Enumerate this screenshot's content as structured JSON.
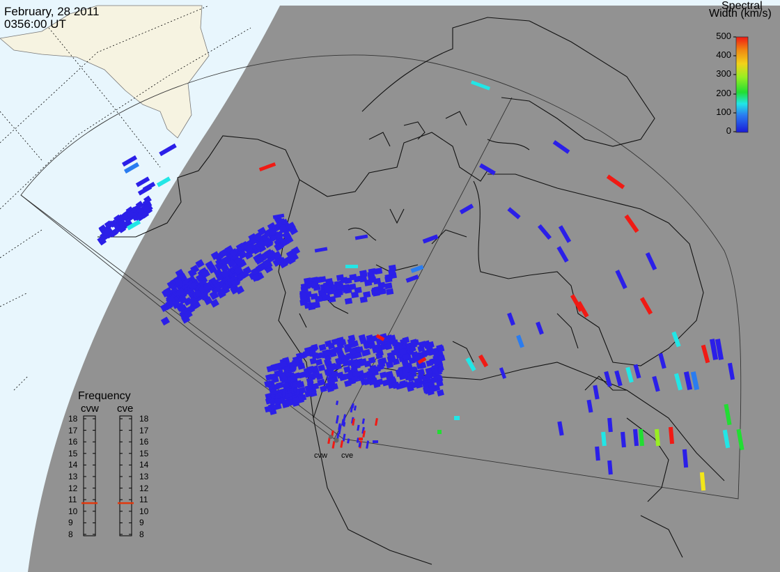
{
  "header": {
    "date": "February, 28 2011",
    "time": "0356:00 UT"
  },
  "colorbar": {
    "title_line1": "Spectral",
    "title_line2": "Width (km/s)",
    "ticks": [
      "500",
      "400",
      "300",
      "200",
      "100",
      "0"
    ],
    "range": [
      0,
      500
    ]
  },
  "frequency_panel": {
    "title": "Frequency",
    "radars": [
      {
        "name": "cvw",
        "value": 10.7
      },
      {
        "name": "cve",
        "value": 10.7
      }
    ],
    "ticks": [
      "18",
      "17",
      "16",
      "15",
      "14",
      "13",
      "12",
      "11",
      "10",
      "9",
      "8"
    ]
  },
  "radar_sites": [
    {
      "name": "cvw"
    },
    {
      "name": "cve"
    }
  ],
  "colors": {
    "ocean": "#e8f6fd",
    "night_side": "#929292",
    "land_day": "#f6f3e1",
    "echo_low": "#2b1fe8",
    "frequency_marker": "#e2380c"
  }
}
